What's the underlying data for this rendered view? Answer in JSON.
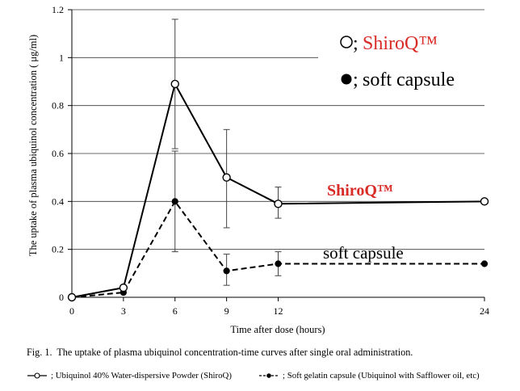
{
  "chart_data": {
    "type": "line",
    "xlabel": "Time after dose (hours)",
    "ylabel": "The uptake of plasma ubiquinol concentration ( μg/ml)",
    "x": [
      0,
      3,
      6,
      9,
      12,
      24
    ],
    "xticks": [
      0,
      3,
      6,
      9,
      12,
      24
    ],
    "yticks": [
      0,
      0.2,
      0.4,
      0.6,
      0.8,
      1,
      1.2
    ],
    "xlim": [
      0,
      24
    ],
    "ylim": [
      0,
      1.2
    ],
    "grid": true,
    "series": [
      {
        "name": "ShiroQ™",
        "color": "#000000",
        "line_style": "solid",
        "marker": "open-circle",
        "values": [
          0,
          0.04,
          0.89,
          0.5,
          0.39,
          0.4
        ],
        "error_low": [
          null,
          null,
          0.62,
          0.29,
          0.33,
          null
        ],
        "error_high": [
          null,
          null,
          1.16,
          0.7,
          0.46,
          null
        ]
      },
      {
        "name": "soft capsule",
        "color": "#000000",
        "line_style": "dashed",
        "marker": "filled-circle",
        "values": [
          0,
          0.02,
          0.4,
          0.11,
          0.14,
          0.14
        ],
        "error_low": [
          null,
          null,
          0.19,
          0.05,
          0.09,
          null
        ],
        "error_high": [
          null,
          null,
          0.61,
          0.18,
          0.19,
          null
        ]
      }
    ],
    "legend": {
      "placement": "top-right",
      "items": [
        {
          "marker": "open-circle",
          "separator": ";",
          "label_color": "#d92b25"
        },
        {
          "marker": "filled-circle",
          "separator": ";",
          "label_color": "#000000"
        }
      ]
    },
    "annotations": [
      {
        "text": "ShiroQ™",
        "color": "#d92b25"
      },
      {
        "text": "soft capsule",
        "color": "#000000"
      }
    ]
  },
  "caption": "Fig. 1.  The uptake of plasma ubiquinol concentration-time curves after single oral administration.",
  "footer_legend": [
    {
      "line_style": "solid",
      "marker": "open-circle",
      "text": "; Ubiquinol 40% Water-dispersive Powder (ShiroQ)"
    },
    {
      "line_style": "dashed",
      "marker": "filled-circle",
      "text": "; Soft gelatin capsule (Ubiquinol with Safflower oil, etc)"
    }
  ]
}
